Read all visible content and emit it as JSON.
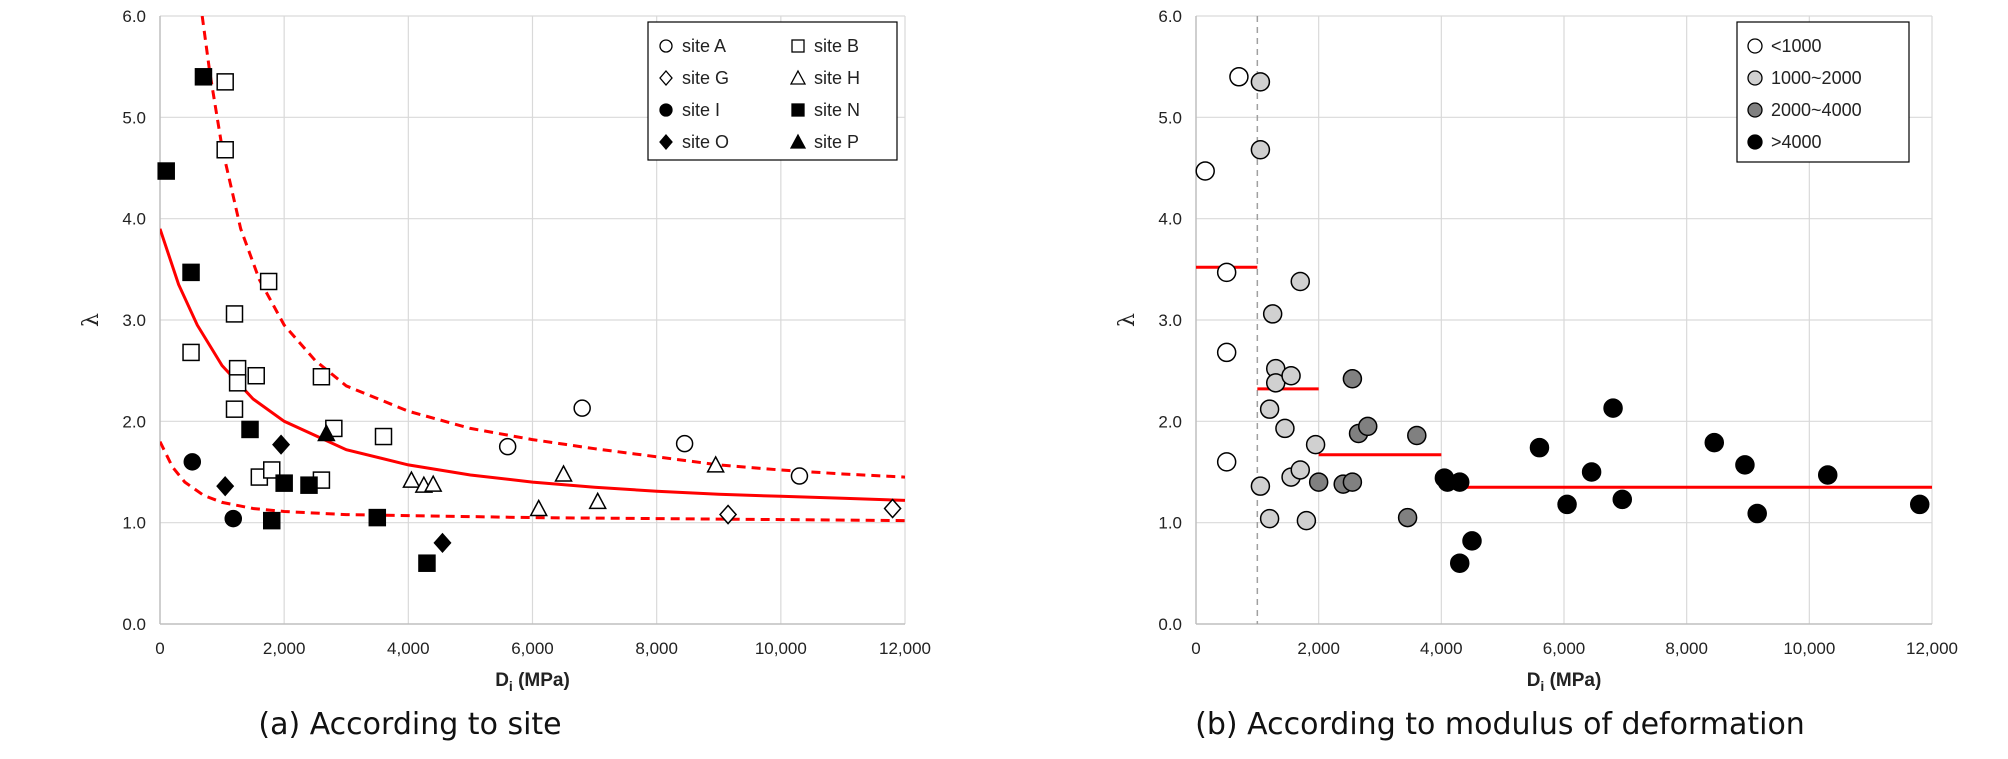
{
  "figure": {
    "captions": [
      "(a) According to site",
      "(b) According to modulus of deformation"
    ]
  },
  "chart_data": [
    {
      "type": "scatter",
      "panel": "a",
      "xlabel": "D",
      "xlabel_sub": "i",
      "xlabel_unit": "(MPa)",
      "ylabel": "λ",
      "xlim": [
        0,
        12000
      ],
      "ylim": [
        0,
        6
      ],
      "xticks": [
        "0",
        "2,000",
        "4,000",
        "6,000",
        "8,000",
        "10,000",
        "12,000"
      ],
      "yticks": [
        "0.0",
        "1.0",
        "2.0",
        "3.0",
        "4.0",
        "5.0",
        "6.0"
      ],
      "grid": true,
      "legend_position": "top-right",
      "series": [
        {
          "name": "site A",
          "marker": "circle-open",
          "points": [
            [
              5600,
              1.75
            ],
            [
              6800,
              2.13
            ],
            [
              8450,
              1.78
            ],
            [
              10300,
              1.46
            ]
          ]
        },
        {
          "name": "site B",
          "marker": "square-open",
          "points": [
            [
              1050,
              5.35
            ],
            [
              1050,
              4.68
            ],
            [
              500,
              2.68
            ],
            [
              1200,
              3.06
            ],
            [
              1750,
              3.38
            ],
            [
              1250,
              2.52
            ],
            [
              1250,
              2.38
            ],
            [
              1550,
              2.45
            ],
            [
              1200,
              2.12
            ],
            [
              2600,
              2.44
            ],
            [
              2800,
              1.93
            ],
            [
              3600,
              1.85
            ],
            [
              1600,
              1.45
            ],
            [
              1800,
              1.52
            ],
            [
              2600,
              1.42
            ]
          ]
        },
        {
          "name": "site G",
          "marker": "diamond-open",
          "points": [
            [
              9150,
              1.08
            ],
            [
              11800,
              1.14
            ]
          ]
        },
        {
          "name": "site H",
          "marker": "triangle-open",
          "points": [
            [
              4050,
              1.42
            ],
            [
              4250,
              1.37
            ],
            [
              4400,
              1.38
            ],
            [
              6100,
              1.14
            ],
            [
              6500,
              1.48
            ],
            [
              7050,
              1.21
            ],
            [
              8950,
              1.57
            ]
          ]
        },
        {
          "name": "site I",
          "marker": "circle-filled",
          "points": [
            [
              520,
              1.6
            ],
            [
              1180,
              1.04
            ]
          ]
        },
        {
          "name": "site N",
          "marker": "square-filled",
          "points": [
            [
              100,
              4.47
            ],
            [
              700,
              5.4
            ],
            [
              500,
              3.47
            ],
            [
              1450,
              1.92
            ],
            [
              2000,
              1.39
            ],
            [
              2400,
              1.37
            ],
            [
              1800,
              1.02
            ],
            [
              3500,
              1.05
            ],
            [
              4300,
              0.6
            ]
          ]
        },
        {
          "name": "site O",
          "marker": "diamond-filled",
          "points": [
            [
              1050,
              1.36
            ],
            [
              1950,
              1.77
            ],
            [
              4550,
              0.8
            ]
          ]
        },
        {
          "name": "site P",
          "marker": "triangle-filled",
          "points": [
            [
              2680,
              1.88
            ]
          ]
        }
      ],
      "curves": [
        {
          "style": "solid",
          "color": "#ff0000",
          "points": [
            [
              0,
              3.9
            ],
            [
              300,
              3.35
            ],
            [
              600,
              2.95
            ],
            [
              1000,
              2.55
            ],
            [
              1500,
              2.22
            ],
            [
              2000,
              2.0
            ],
            [
              3000,
              1.72
            ],
            [
              4000,
              1.57
            ],
            [
              5000,
              1.47
            ],
            [
              6000,
              1.4
            ],
            [
              7000,
              1.35
            ],
            [
              8000,
              1.31
            ],
            [
              9000,
              1.28
            ],
            [
              10000,
              1.26
            ],
            [
              11000,
              1.24
            ],
            [
              12000,
              1.22
            ]
          ]
        },
        {
          "style": "dashed",
          "color": "#ff0000",
          "points": [
            [
              680,
              6.0
            ],
            [
              800,
              5.45
            ],
            [
              1000,
              4.7
            ],
            [
              1300,
              3.9
            ],
            [
              1600,
              3.4
            ],
            [
              2000,
              2.95
            ],
            [
              2500,
              2.6
            ],
            [
              3000,
              2.35
            ],
            [
              4000,
              2.1
            ],
            [
              5000,
              1.93
            ],
            [
              6000,
              1.82
            ],
            [
              7000,
              1.73
            ],
            [
              8000,
              1.65
            ],
            [
              9000,
              1.57
            ],
            [
              10000,
              1.52
            ],
            [
              11000,
              1.48
            ],
            [
              12000,
              1.45
            ]
          ]
        },
        {
          "style": "dashed",
          "color": "#ff0000",
          "points": [
            [
              0,
              1.8
            ],
            [
              200,
              1.55
            ],
            [
              400,
              1.4
            ],
            [
              700,
              1.27
            ],
            [
              1000,
              1.2
            ],
            [
              1500,
              1.14
            ],
            [
              2000,
              1.11
            ],
            [
              3000,
              1.08
            ],
            [
              4000,
              1.07
            ],
            [
              6000,
              1.05
            ],
            [
              8000,
              1.04
            ],
            [
              10000,
              1.03
            ],
            [
              12000,
              1.02
            ]
          ]
        }
      ]
    },
    {
      "type": "scatter",
      "panel": "b",
      "xlabel": "D",
      "xlabel_sub": "i",
      "xlabel_unit": "(MPa)",
      "ylabel": "λ",
      "xlim": [
        0,
        12000
      ],
      "ylim": [
        0,
        6
      ],
      "xticks": [
        "0",
        "2,000",
        "4,000",
        "6,000",
        "8,000",
        "10,000",
        "12,000"
      ],
      "yticks": [
        "0.0",
        "1.0",
        "2.0",
        "3.0",
        "4.0",
        "5.0",
        "6.0"
      ],
      "grid": true,
      "legend_position": "top-right",
      "series": [
        {
          "name": "<1000",
          "color": "#ffffff",
          "points": [
            [
              150,
              4.47
            ],
            [
              700,
              5.4
            ],
            [
              500,
              3.47
            ],
            [
              500,
              2.68
            ],
            [
              500,
              1.6
            ]
          ]
        },
        {
          "name": "1000~2000",
          "color": "#d0d0d0",
          "points": [
            [
              1050,
              5.35
            ],
            [
              1050,
              4.68
            ],
            [
              1700,
              3.38
            ],
            [
              1250,
              3.06
            ],
            [
              1300,
              2.52
            ],
            [
              1300,
              2.38
            ],
            [
              1550,
              2.45
            ],
            [
              1200,
              2.12
            ],
            [
              1450,
              1.93
            ],
            [
              1050,
              1.36
            ],
            [
              1550,
              1.45
            ],
            [
              1700,
              1.52
            ],
            [
              1950,
              1.77
            ],
            [
              1200,
              1.04
            ],
            [
              1800,
              1.02
            ]
          ]
        },
        {
          "name": "2000~4000",
          "color": "#808080",
          "points": [
            [
              2550,
              2.42
            ],
            [
              2650,
              1.88
            ],
            [
              2800,
              1.95
            ],
            [
              3600,
              1.86
            ],
            [
              2000,
              1.4
            ],
            [
              2400,
              1.38
            ],
            [
              2550,
              1.4
            ],
            [
              3450,
              1.05
            ]
          ]
        },
        {
          "name": ">4000",
          "color": "#000000",
          "points": [
            [
              4050,
              1.44
            ],
            [
              4100,
              1.4
            ],
            [
              4300,
              1.4
            ],
            [
              4300,
              0.6
            ],
            [
              4500,
              0.82
            ],
            [
              5600,
              1.74
            ],
            [
              6050,
              1.18
            ],
            [
              6450,
              1.5
            ],
            [
              6800,
              2.13
            ],
            [
              6950,
              1.23
            ],
            [
              8450,
              1.79
            ],
            [
              8950,
              1.57
            ],
            [
              9150,
              1.09
            ],
            [
              10300,
              1.47
            ],
            [
              11800,
              1.18
            ]
          ]
        }
      ],
      "segments": [
        {
          "x": [
            0,
            1000
          ],
          "y": 3.52
        },
        {
          "x": [
            1000,
            2000
          ],
          "y": 2.32
        },
        {
          "x": [
            2000,
            4000
          ],
          "y": 1.67
        },
        {
          "x": [
            4000,
            12000
          ],
          "y": 1.35
        }
      ],
      "reference_line": {
        "x": 1000,
        "style": "dashed",
        "color": "#a0a0a0"
      }
    }
  ]
}
